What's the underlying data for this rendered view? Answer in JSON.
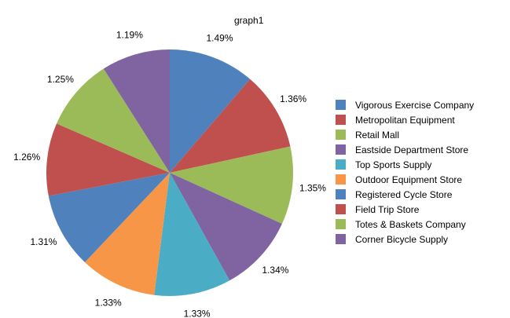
{
  "chart_data": {
    "type": "pie",
    "title": "graph1",
    "legend_position": "right",
    "start_angle": "12 o'clock, clockwise",
    "categories": [
      "Vigorous Exercise Company",
      "Metropolitan Equipment",
      "Retail Mall",
      "Eastside Department Store",
      "Top Sports Supply",
      "Outdoor Equipment Store",
      "Registered Cycle Store",
      "Field Trip Store",
      "Totes & Baskets Company",
      "Corner Bicycle Supply"
    ],
    "values": [
      1.49,
      1.36,
      1.35,
      1.34,
      1.33,
      1.33,
      1.31,
      1.26,
      1.25,
      1.19
    ],
    "labels": [
      "1.49%",
      "1.36%",
      "1.35%",
      "1.34%",
      "1.33%",
      "1.33%",
      "1.31%",
      "1.26%",
      "1.25%",
      "1.19%"
    ],
    "colors": [
      "#4f81bd",
      "#c0504d",
      "#9bbb59",
      "#8064a2",
      "#4bacc6",
      "#f79646",
      "#4f81bd",
      "#c0504d",
      "#9bbb59",
      "#8064a2"
    ]
  }
}
